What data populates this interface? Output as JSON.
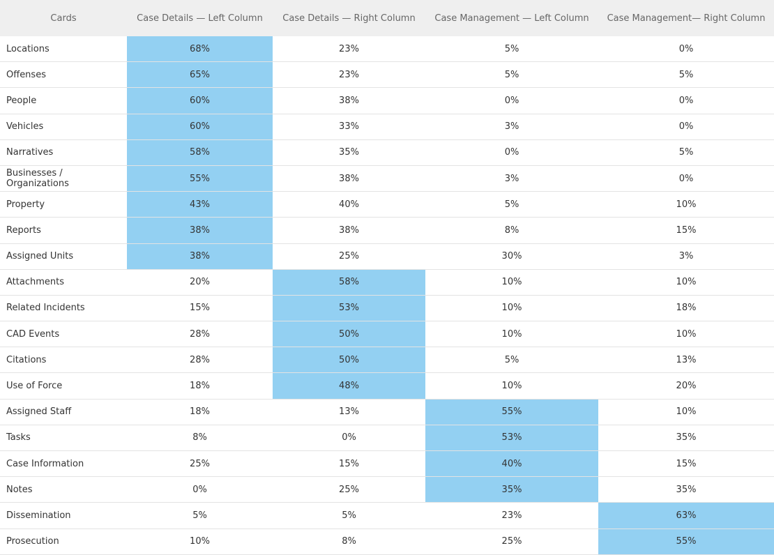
{
  "table": {
    "header": [
      "Cards",
      "Case Details — Left Column",
      "Case Details — Right Column",
      "Case Management — Left Column",
      "Case Management— Right Column"
    ],
    "rows": [
      [
        "Locations",
        "68%",
        "23%",
        "5%",
        "0%"
      ],
      [
        "Offenses",
        "65%",
        "23%",
        "5%",
        "5%"
      ],
      [
        "People",
        "60%",
        "38%",
        "0%",
        "0%"
      ],
      [
        "Vehicles",
        "60%",
        "33%",
        "3%",
        "0%"
      ],
      [
        "Narratives",
        "58%",
        "35%",
        "0%",
        "5%"
      ],
      [
        "Businesses / Organizations",
        "55%",
        "38%",
        "3%",
        "0%"
      ],
      [
        "Property",
        "43%",
        "40%",
        "5%",
        "10%"
      ],
      [
        "Reports",
        "38%",
        "38%",
        "8%",
        "15%"
      ],
      [
        "Assigned Units",
        "38%",
        "25%",
        "30%",
        "3%"
      ],
      [
        "Attachments",
        "20%",
        "58%",
        "10%",
        "10%"
      ],
      [
        "Related Incidents",
        "15%",
        "53%",
        "10%",
        "18%"
      ],
      [
        "CAD Events",
        "28%",
        "50%",
        "10%",
        "10%"
      ],
      [
        "Citations",
        "28%",
        "50%",
        "5%",
        "13%"
      ],
      [
        "Use of Force",
        "18%",
        "48%",
        "10%",
        "20%"
      ],
      [
        "Assigned Staff",
        "18%",
        "13%",
        "55%",
        "10%"
      ],
      [
        "Tasks",
        "8%",
        "0%",
        "53%",
        "35%"
      ],
      [
        "Case Information",
        "25%",
        "15%",
        "40%",
        "15%"
      ],
      [
        "Notes",
        "0%",
        "25%",
        "35%",
        "35%"
      ],
      [
        "Dissemination",
        "5%",
        "5%",
        "23%",
        "63%"
      ],
      [
        "Prosecution",
        "10%",
        "8%",
        "25%",
        "55%"
      ]
    ]
  }
}
